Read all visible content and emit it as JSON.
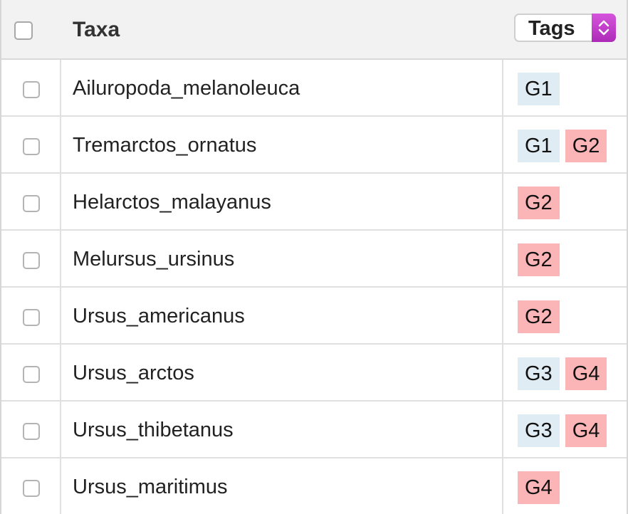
{
  "header": {
    "taxa_label": "Taxa",
    "tags_select_value": "Tags"
  },
  "colors": {
    "tag_blue": "#e0ecf4",
    "tag_red": "#fbb5b7",
    "select_accent": "#c23ecb"
  },
  "rows": [
    {
      "taxon": "Ailuropoda_melanoleuca",
      "tags": [
        {
          "label": "G1",
          "color": "#e0ecf4"
        }
      ]
    },
    {
      "taxon": "Tremarctos_ornatus",
      "tags": [
        {
          "label": "G1",
          "color": "#e0ecf4"
        },
        {
          "label": "G2",
          "color": "#fbb5b7"
        }
      ]
    },
    {
      "taxon": "Helarctos_malayanus",
      "tags": [
        {
          "label": "G2",
          "color": "#fbb5b7"
        }
      ]
    },
    {
      "taxon": "Melursus_ursinus",
      "tags": [
        {
          "label": "G2",
          "color": "#fbb5b7"
        }
      ]
    },
    {
      "taxon": "Ursus_americanus",
      "tags": [
        {
          "label": "G2",
          "color": "#fbb5b7"
        }
      ]
    },
    {
      "taxon": "Ursus_arctos",
      "tags": [
        {
          "label": "G3",
          "color": "#e0ecf4"
        },
        {
          "label": "G4",
          "color": "#fbb5b7"
        }
      ]
    },
    {
      "taxon": "Ursus_thibetanus",
      "tags": [
        {
          "label": "G3",
          "color": "#e0ecf4"
        },
        {
          "label": "G4",
          "color": "#fbb5b7"
        }
      ]
    },
    {
      "taxon": "Ursus_maritimus",
      "tags": [
        {
          "label": "G4",
          "color": "#fbb5b7"
        }
      ]
    }
  ]
}
